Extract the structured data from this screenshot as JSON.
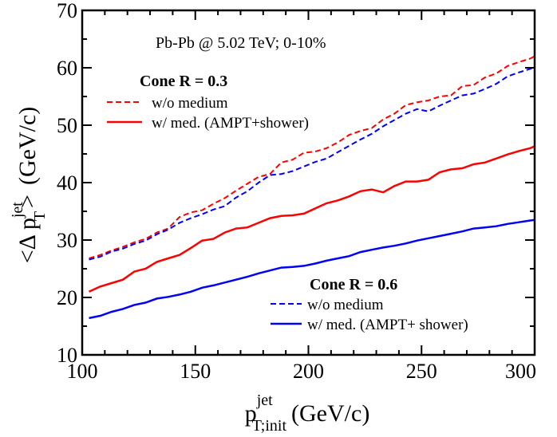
{
  "chart_data": {
    "type": "line",
    "annotation": "Pb-Pb @ 5.02 TeV;  0-10%",
    "xlabel": {
      "main": "p",
      "sup": "jet",
      "sub": "T;init",
      "unit": "(GeV/c)"
    },
    "ylabel": {
      "prefix": "<Δ p",
      "sup": "jet",
      "sub": "T",
      "suffix": ">",
      "unit": "(GeV/c)"
    },
    "xlim": [
      100,
      300
    ],
    "ylim": [
      10,
      70
    ],
    "x_ticks": [
      "100",
      "150",
      "200",
      "250",
      "300"
    ],
    "y_ticks": [
      "10",
      "20",
      "30",
      "40",
      "50",
      "60",
      "70"
    ],
    "legend_groups": [
      {
        "title": "Cone R = 0.3",
        "entries": [
          {
            "label": "w/o medium",
            "series": 0
          },
          {
            "label": "w/ med. (AMPT+shower)",
            "series": 1
          }
        ]
      },
      {
        "title": "Cone R = 0.6",
        "entries": [
          {
            "label": "w/o medium",
            "series": 2
          },
          {
            "label": "w/ med. (AMPT+ shower)",
            "series": 3
          }
        ]
      }
    ],
    "x": [
      103,
      108,
      113,
      118,
      123,
      128,
      133,
      138,
      143,
      148,
      153,
      158,
      163,
      168,
      173,
      178,
      183,
      188,
      193,
      198,
      203,
      208,
      213,
      218,
      223,
      228,
      233,
      238,
      243,
      248,
      253,
      258,
      263,
      268,
      273,
      278,
      283,
      288,
      293,
      298,
      300
    ],
    "series": [
      {
        "label": "Cone R = 0.3 w/o medium",
        "color": "#ff0000",
        "dash": true,
        "values": [
          26.8,
          27.4,
          28.2,
          28.8,
          29.6,
          30.2,
          31.3,
          32.0,
          34.0,
          34.8,
          35.2,
          36.3,
          37.3,
          38.6,
          39.8,
          41.0,
          41.5,
          43.5,
          44.0,
          45.2,
          45.4,
          46.0,
          47.0,
          48.3,
          49.0,
          49.5,
          51.0,
          52.0,
          53.5,
          54.0,
          54.3,
          55.0,
          55.2,
          56.8,
          57.0,
          58.3,
          59.0,
          60.3,
          61.0,
          61.6,
          62.0
        ]
      },
      {
        "label": "Cone R = 0.3 w/ med. (AMPT+shower)",
        "color": "#ff0000",
        "dash": false,
        "values": [
          21.0,
          21.9,
          22.5,
          23.1,
          24.5,
          25.0,
          26.2,
          26.8,
          27.4,
          28.6,
          29.9,
          30.2,
          31.3,
          32.0,
          32.2,
          33.0,
          33.8,
          34.2,
          34.3,
          34.6,
          35.5,
          36.4,
          36.9,
          37.6,
          38.5,
          38.8,
          38.3,
          39.4,
          40.2,
          40.2,
          40.5,
          41.8,
          42.3,
          42.5,
          43.2,
          43.5,
          44.2,
          44.9,
          45.5,
          46.0,
          46.3
        ]
      },
      {
        "label": "Cone R = 0.6 w/o medium",
        "color": "#0000ff",
        "dash": true,
        "values": [
          26.6,
          27.1,
          28.0,
          28.5,
          29.3,
          29.9,
          31.0,
          31.8,
          33.0,
          33.8,
          34.5,
          35.3,
          35.9,
          37.4,
          38.5,
          40.0,
          41.3,
          41.5,
          42.0,
          42.8,
          43.6,
          44.2,
          45.3,
          46.4,
          47.5,
          48.5,
          49.8,
          50.9,
          52.0,
          52.8,
          52.4,
          53.4,
          54.3,
          55.2,
          55.5,
          56.3,
          57.2,
          58.5,
          59.2,
          59.8,
          60.1
        ]
      },
      {
        "label": "Cone R = 0.6 w/ med. (AMPT+ shower)",
        "color": "#0000ff",
        "dash": false,
        "values": [
          16.4,
          16.8,
          17.5,
          18.0,
          18.7,
          19.1,
          19.8,
          20.1,
          20.5,
          21.0,
          21.7,
          22.1,
          22.6,
          23.1,
          23.6,
          24.2,
          24.7,
          25.2,
          25.3,
          25.5,
          25.9,
          26.4,
          26.8,
          27.2,
          27.9,
          28.3,
          28.7,
          29.0,
          29.4,
          29.9,
          30.3,
          30.7,
          31.1,
          31.5,
          32.0,
          32.2,
          32.4,
          32.8,
          33.1,
          33.4,
          33.5
        ]
      }
    ]
  }
}
